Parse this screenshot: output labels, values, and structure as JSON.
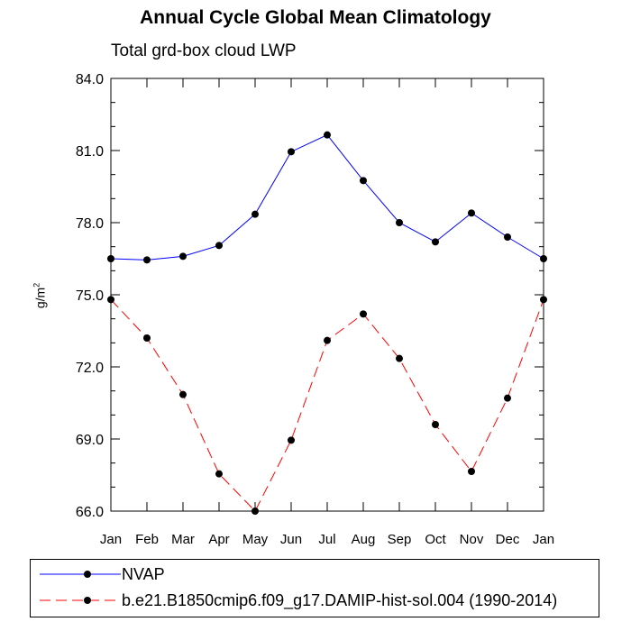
{
  "chart_data": {
    "type": "line",
    "title": "Annual Cycle Global Mean Climatology",
    "subtitle": "Total grd-box cloud LWP",
    "ylabel": "g/m",
    "ylabel_sup": "2",
    "xlabel": "",
    "categories": [
      "Jan",
      "Feb",
      "Mar",
      "Apr",
      "May",
      "Jun",
      "Jul",
      "Aug",
      "Sep",
      "Oct",
      "Nov",
      "Dec",
      "Jan"
    ],
    "ylim": [
      66.0,
      84.0
    ],
    "yticks": [
      "66.0",
      "69.0",
      "72.0",
      "75.0",
      "78.0",
      "81.0",
      "84.0"
    ],
    "series": [
      {
        "name": "NVAP",
        "color": "#0000ff",
        "dash": "solid",
        "values": [
          76.5,
          76.45,
          76.6,
          77.05,
          78.35,
          80.95,
          81.65,
          79.75,
          78.0,
          77.2,
          78.4,
          77.4,
          76.5
        ]
      },
      {
        "name": "b.e21.B1850cmip6.f09_g17.DAMIP-hist-sol.004 (1990-2014)",
        "color": "#ff0000",
        "dash": "dashed",
        "values": [
          74.8,
          73.2,
          70.85,
          67.55,
          66.0,
          68.95,
          73.1,
          74.2,
          72.35,
          69.6,
          67.65,
          70.7,
          74.8
        ]
      }
    ],
    "legend_position": "bottom",
    "grid": false
  }
}
